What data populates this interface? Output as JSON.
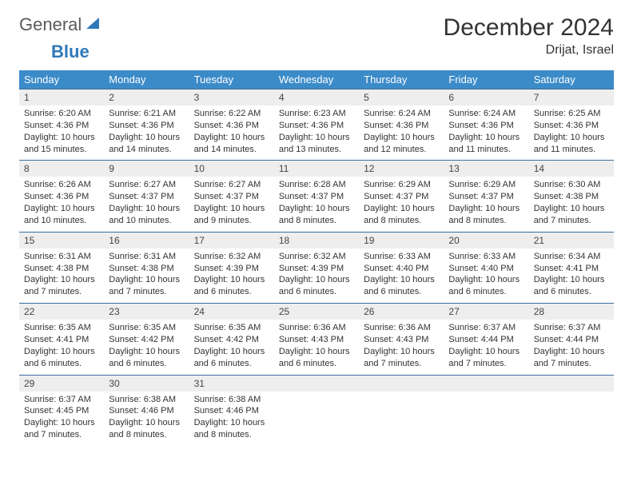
{
  "logo": {
    "text1": "General",
    "text2": "Blue"
  },
  "title": "December 2024",
  "location": "Drijat, Israel",
  "colors": {
    "header_bg": "#3b8bc9",
    "header_fg": "#ffffff",
    "daynum_bg": "#eeeeee",
    "row_border": "#3b6f9e",
    "text": "#333333",
    "logo_gray": "#5a5a5a",
    "logo_blue": "#2f79b9"
  },
  "daysOfWeek": [
    "Sunday",
    "Monday",
    "Tuesday",
    "Wednesday",
    "Thursday",
    "Friday",
    "Saturday"
  ],
  "weeks": [
    [
      {
        "n": "1",
        "sunrise": "6:20 AM",
        "sunset": "4:36 PM",
        "daylight": "10 hours and 15 minutes."
      },
      {
        "n": "2",
        "sunrise": "6:21 AM",
        "sunset": "4:36 PM",
        "daylight": "10 hours and 14 minutes."
      },
      {
        "n": "3",
        "sunrise": "6:22 AM",
        "sunset": "4:36 PM",
        "daylight": "10 hours and 14 minutes."
      },
      {
        "n": "4",
        "sunrise": "6:23 AM",
        "sunset": "4:36 PM",
        "daylight": "10 hours and 13 minutes."
      },
      {
        "n": "5",
        "sunrise": "6:24 AM",
        "sunset": "4:36 PM",
        "daylight": "10 hours and 12 minutes."
      },
      {
        "n": "6",
        "sunrise": "6:24 AM",
        "sunset": "4:36 PM",
        "daylight": "10 hours and 11 minutes."
      },
      {
        "n": "7",
        "sunrise": "6:25 AM",
        "sunset": "4:36 PM",
        "daylight": "10 hours and 11 minutes."
      }
    ],
    [
      {
        "n": "8",
        "sunrise": "6:26 AM",
        "sunset": "4:36 PM",
        "daylight": "10 hours and 10 minutes."
      },
      {
        "n": "9",
        "sunrise": "6:27 AM",
        "sunset": "4:37 PM",
        "daylight": "10 hours and 10 minutes."
      },
      {
        "n": "10",
        "sunrise": "6:27 AM",
        "sunset": "4:37 PM",
        "daylight": "10 hours and 9 minutes."
      },
      {
        "n": "11",
        "sunrise": "6:28 AM",
        "sunset": "4:37 PM",
        "daylight": "10 hours and 8 minutes."
      },
      {
        "n": "12",
        "sunrise": "6:29 AM",
        "sunset": "4:37 PM",
        "daylight": "10 hours and 8 minutes."
      },
      {
        "n": "13",
        "sunrise": "6:29 AM",
        "sunset": "4:37 PM",
        "daylight": "10 hours and 8 minutes."
      },
      {
        "n": "14",
        "sunrise": "6:30 AM",
        "sunset": "4:38 PM",
        "daylight": "10 hours and 7 minutes."
      }
    ],
    [
      {
        "n": "15",
        "sunrise": "6:31 AM",
        "sunset": "4:38 PM",
        "daylight": "10 hours and 7 minutes."
      },
      {
        "n": "16",
        "sunrise": "6:31 AM",
        "sunset": "4:38 PM",
        "daylight": "10 hours and 7 minutes."
      },
      {
        "n": "17",
        "sunrise": "6:32 AM",
        "sunset": "4:39 PM",
        "daylight": "10 hours and 6 minutes."
      },
      {
        "n": "18",
        "sunrise": "6:32 AM",
        "sunset": "4:39 PM",
        "daylight": "10 hours and 6 minutes."
      },
      {
        "n": "19",
        "sunrise": "6:33 AM",
        "sunset": "4:40 PM",
        "daylight": "10 hours and 6 minutes."
      },
      {
        "n": "20",
        "sunrise": "6:33 AM",
        "sunset": "4:40 PM",
        "daylight": "10 hours and 6 minutes."
      },
      {
        "n": "21",
        "sunrise": "6:34 AM",
        "sunset": "4:41 PM",
        "daylight": "10 hours and 6 minutes."
      }
    ],
    [
      {
        "n": "22",
        "sunrise": "6:35 AM",
        "sunset": "4:41 PM",
        "daylight": "10 hours and 6 minutes."
      },
      {
        "n": "23",
        "sunrise": "6:35 AM",
        "sunset": "4:42 PM",
        "daylight": "10 hours and 6 minutes."
      },
      {
        "n": "24",
        "sunrise": "6:35 AM",
        "sunset": "4:42 PM",
        "daylight": "10 hours and 6 minutes."
      },
      {
        "n": "25",
        "sunrise": "6:36 AM",
        "sunset": "4:43 PM",
        "daylight": "10 hours and 6 minutes."
      },
      {
        "n": "26",
        "sunrise": "6:36 AM",
        "sunset": "4:43 PM",
        "daylight": "10 hours and 7 minutes."
      },
      {
        "n": "27",
        "sunrise": "6:37 AM",
        "sunset": "4:44 PM",
        "daylight": "10 hours and 7 minutes."
      },
      {
        "n": "28",
        "sunrise": "6:37 AM",
        "sunset": "4:44 PM",
        "daylight": "10 hours and 7 minutes."
      }
    ],
    [
      {
        "n": "29",
        "sunrise": "6:37 AM",
        "sunset": "4:45 PM",
        "daylight": "10 hours and 7 minutes."
      },
      {
        "n": "30",
        "sunrise": "6:38 AM",
        "sunset": "4:46 PM",
        "daylight": "10 hours and 8 minutes."
      },
      {
        "n": "31",
        "sunrise": "6:38 AM",
        "sunset": "4:46 PM",
        "daylight": "10 hours and 8 minutes."
      },
      {
        "n": "",
        "empty": true
      },
      {
        "n": "",
        "empty": true
      },
      {
        "n": "",
        "empty": true
      },
      {
        "n": "",
        "empty": true
      }
    ]
  ]
}
